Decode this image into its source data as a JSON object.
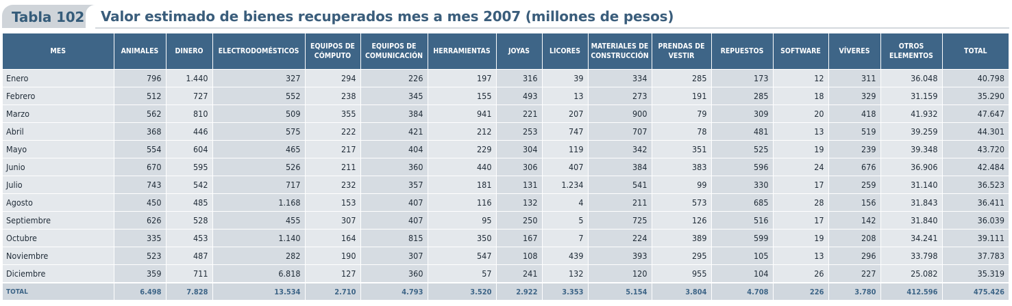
{
  "header": {
    "tag": "Tabla 102.",
    "title": "Valor estimado de bienes recuperados mes a mes 2007 (millones de pesos)"
  },
  "table": {
    "columns": [
      "MES",
      "ANIMALES",
      "DINERO",
      "ELECTRODOMÉSTICOS",
      "EQUIPOS DE CÓMPUTO",
      "EQUIPOS DE COMUNICACIÓN",
      "HERRAMIENTAS",
      "JOYAS",
      "LICORES",
      "MATERIALES DE CONSTRUCCIÓN",
      "PRENDAS DE VESTIR",
      "REPUESTOS",
      "SOFTWARE",
      "VÍVERES",
      "OTROS ELEMENTOS",
      "TOTAL"
    ],
    "rows": [
      [
        "Enero",
        "796",
        "1.440",
        "327",
        "294",
        "226",
        "197",
        "316",
        "39",
        "334",
        "285",
        "173",
        "12",
        "311",
        "36.048",
        "40.798"
      ],
      [
        "Febrero",
        "512",
        "727",
        "552",
        "238",
        "345",
        "155",
        "493",
        "13",
        "273",
        "191",
        "285",
        "18",
        "329",
        "31.159",
        "35.290"
      ],
      [
        "Marzo",
        "562",
        "810",
        "509",
        "355",
        "384",
        "941",
        "221",
        "207",
        "900",
        "79",
        "309",
        "20",
        "418",
        "41.932",
        "47.647"
      ],
      [
        "Abril",
        "368",
        "446",
        "575",
        "222",
        "421",
        "212",
        "253",
        "747",
        "707",
        "78",
        "481",
        "13",
        "519",
        "39.259",
        "44.301"
      ],
      [
        "Mayo",
        "554",
        "604",
        "465",
        "217",
        "404",
        "229",
        "304",
        "119",
        "342",
        "351",
        "525",
        "19",
        "239",
        "39.348",
        "43.720"
      ],
      [
        "Junio",
        "670",
        "595",
        "526",
        "211",
        "360",
        "440",
        "306",
        "407",
        "384",
        "383",
        "596",
        "24",
        "676",
        "36.906",
        "42.484"
      ],
      [
        "Julio",
        "743",
        "542",
        "717",
        "232",
        "357",
        "181",
        "131",
        "1.234",
        "541",
        "99",
        "330",
        "17",
        "259",
        "31.140",
        "36.523"
      ],
      [
        "Agosto",
        "450",
        "485",
        "1.168",
        "153",
        "407",
        "116",
        "132",
        "4",
        "211",
        "573",
        "685",
        "28",
        "156",
        "31.843",
        "36.411"
      ],
      [
        "Septiembre",
        "626",
        "528",
        "455",
        "307",
        "407",
        "95",
        "250",
        "5",
        "725",
        "126",
        "516",
        "17",
        "142",
        "31.840",
        "36.039"
      ],
      [
        "Octubre",
        "335",
        "453",
        "1.140",
        "164",
        "815",
        "350",
        "167",
        "7",
        "224",
        "389",
        "599",
        "19",
        "208",
        "34.241",
        "39.111"
      ],
      [
        "Noviembre",
        "523",
        "487",
        "282",
        "190",
        "307",
        "547",
        "108",
        "439",
        "393",
        "295",
        "105",
        "13",
        "296",
        "33.798",
        "37.783"
      ],
      [
        "Diciembre",
        "359",
        "711",
        "6.818",
        "127",
        "360",
        "57",
        "241",
        "132",
        "120",
        "955",
        "104",
        "26",
        "227",
        "25.082",
        "35.319"
      ]
    ],
    "total": [
      "TOTAL",
      "6.498",
      "7.828",
      "13.534",
      "2.710",
      "4.793",
      "3.520",
      "2.922",
      "3.353",
      "5.154",
      "3.804",
      "4.708",
      "226",
      "3.780",
      "412.596",
      "475.426"
    ]
  }
}
